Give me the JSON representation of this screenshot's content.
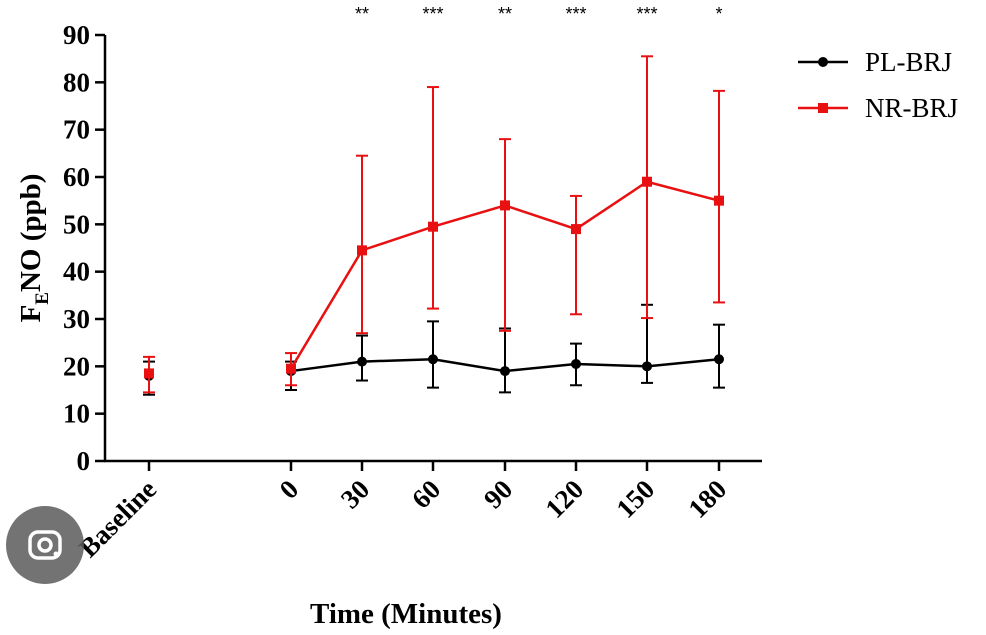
{
  "chart_data": {
    "type": "line",
    "ylabel_parts": {
      "main": "F",
      "sub": "E",
      "rest": "NO (ppb)"
    },
    "xlabel": "Time (Minutes)",
    "categories": [
      "Baseline",
      "0",
      "30",
      "60",
      "90",
      "120",
      "150",
      "180"
    ],
    "x_positions": [
      -120,
      0,
      30,
      60,
      90,
      120,
      150,
      180
    ],
    "ylim": [
      0,
      90
    ],
    "yticks": [
      0,
      10,
      20,
      30,
      40,
      50,
      60,
      70,
      80,
      90
    ],
    "significance": [
      {
        "x": 30,
        "label": "**"
      },
      {
        "x": 60,
        "label": "***"
      },
      {
        "x": 90,
        "label": "**"
      },
      {
        "x": 120,
        "label": "***"
      },
      {
        "x": 150,
        "label": "***"
      },
      {
        "x": 180,
        "label": "*"
      }
    ],
    "series": [
      {
        "name": "PL-BRJ",
        "color": "#000000",
        "marker": "circle",
        "baseline": {
          "value": 18,
          "err_low": 14,
          "err_high": 21
        },
        "x": [
          0,
          30,
          60,
          90,
          120,
          150,
          180
        ],
        "values": [
          19,
          21,
          21.5,
          19,
          20.5,
          20,
          21.5
        ],
        "err_low": [
          15,
          17,
          15.5,
          14.5,
          16,
          16.5,
          15.5
        ],
        "err_high": [
          21,
          26.5,
          29.5,
          28,
          24.8,
          33,
          28.8
        ]
      },
      {
        "name": "NR-BRJ",
        "color": "#e81010",
        "marker": "square",
        "baseline": {
          "value": 18.5,
          "err_low": 14.5,
          "err_high": 22
        },
        "x": [
          0,
          30,
          60,
          90,
          120,
          150,
          180
        ],
        "values": [
          19.5,
          44.5,
          49.5,
          54,
          49,
          59,
          55
        ],
        "err_low": [
          16,
          27,
          32.2,
          27.5,
          31,
          30.2,
          33.5
        ],
        "err_high": [
          22.8,
          64.5,
          79,
          68,
          56,
          85.5,
          78.2
        ]
      }
    ],
    "legend_position": "top-right"
  },
  "lens_icon": "google-lens-icon"
}
